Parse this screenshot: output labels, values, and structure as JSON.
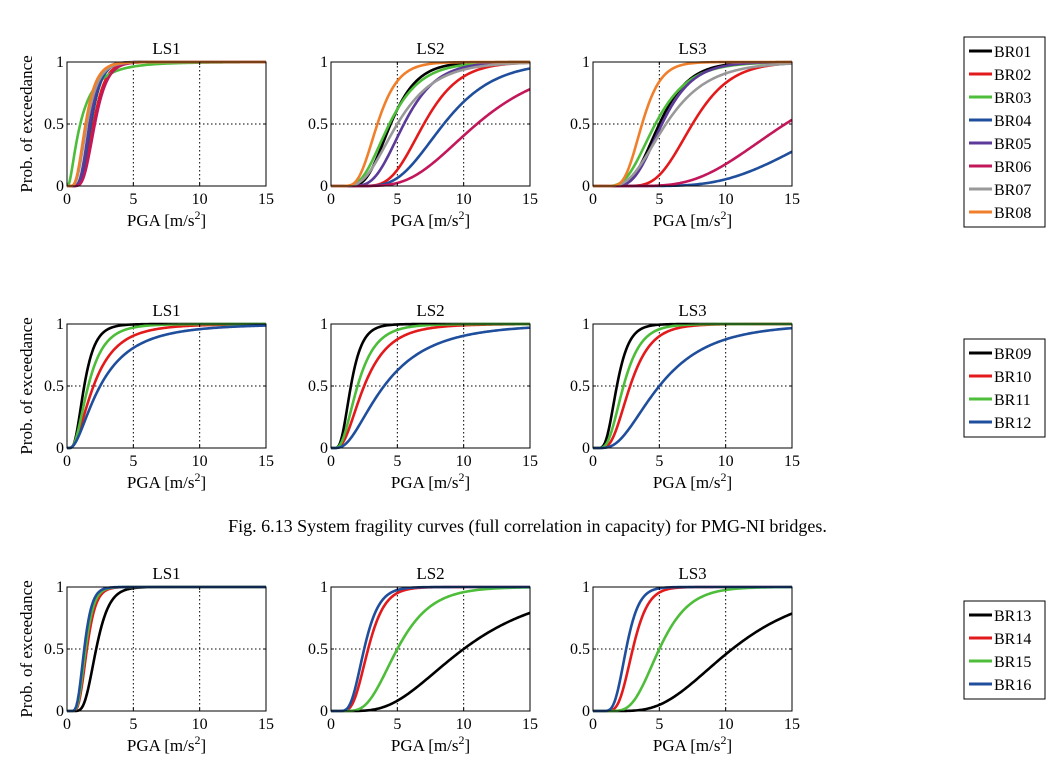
{
  "caption": "Fig. 6.13 System fragility curves (full correlation in capacity) for PMG-NI bridges.",
  "chart_data": [
    {
      "type": "line",
      "title": "System fragility curves, BR01-BR08",
      "ylabel": "Prob. of exceedance",
      "xlabel_main": "PGA [m/s",
      "xlabel_sup": "2",
      "xlabel_end": "]",
      "xlim": [
        0,
        15
      ],
      "ylim": [
        0,
        1
      ],
      "xticks": [
        "0",
        "5",
        "10",
        "15"
      ],
      "yticks": [
        "0",
        "0.5",
        "1"
      ],
      "panels": [
        {
          "title": "LS1",
          "series": [
            {
              "name": "BR01",
              "color": "#000000",
              "median": 1.8,
              "beta": 0.35
            },
            {
              "name": "BR02",
              "color": "#e31a1c",
              "median": 2.0,
              "beta": 0.35
            },
            {
              "name": "BR03",
              "color": "#4dbd3a",
              "median": 1.0,
              "beta": 0.9
            },
            {
              "name": "BR04",
              "color": "#1f4e9c",
              "median": 1.8,
              "beta": 0.35
            },
            {
              "name": "BR05",
              "color": "#5b3a99",
              "median": 1.7,
              "beta": 0.35
            },
            {
              "name": "BR06",
              "color": "#c2185b",
              "median": 2.1,
              "beta": 0.35
            },
            {
              "name": "BR07",
              "color": "#999999",
              "median": 1.5,
              "beta": 0.45
            },
            {
              "name": "BR08",
              "color": "#f07f2b",
              "median": 1.4,
              "beta": 0.45
            }
          ]
        },
        {
          "title": "LS2",
          "series": [
            {
              "name": "BR01",
              "color": "#000000",
              "median": 4.5,
              "beta": 0.35
            },
            {
              "name": "BR02",
              "color": "#e31a1c",
              "median": 7.0,
              "beta": 0.3
            },
            {
              "name": "BR03",
              "color": "#4dbd3a",
              "median": 4.4,
              "beta": 0.42
            },
            {
              "name": "BR04",
              "color": "#1f4e9c",
              "median": 8.5,
              "beta": 0.35
            },
            {
              "name": "BR05",
              "color": "#5b3a99",
              "median": 5.5,
              "beta": 0.35
            },
            {
              "name": "BR06",
              "color": "#c2185b",
              "median": 11.0,
              "beta": 0.4
            },
            {
              "name": "BR07",
              "color": "#999999",
              "median": 5.0,
              "beta": 0.45
            },
            {
              "name": "BR08",
              "color": "#f07f2b",
              "median": 3.5,
              "beta": 0.35
            }
          ]
        },
        {
          "title": "LS3",
          "series": [
            {
              "name": "BR01",
              "color": "#000000",
              "median": 5.0,
              "beta": 0.35
            },
            {
              "name": "BR02",
              "color": "#e31a1c",
              "median": 7.5,
              "beta": 0.3
            },
            {
              "name": "BR03",
              "color": "#4dbd3a",
              "median": 4.7,
              "beta": 0.42
            },
            {
              "name": "BR04",
              "color": "#1f4e9c",
              "median": 19.0,
              "beta": 0.4
            },
            {
              "name": "BR05",
              "color": "#5b3a99",
              "median": 5.2,
              "beta": 0.35
            },
            {
              "name": "BR06",
              "color": "#c2185b",
              "median": 14.5,
              "beta": 0.4
            },
            {
              "name": "BR07",
              "color": "#999999",
              "median": 5.5,
              "beta": 0.45
            },
            {
              "name": "BR08",
              "color": "#f07f2b",
              "median": 3.7,
              "beta": 0.3
            }
          ]
        }
      ]
    },
    {
      "type": "line",
      "title": "System fragility curves, BR09-BR12",
      "ylabel": "Prob. of exceedance",
      "xlabel_main": "PGA [m/s",
      "xlabel_sup": "2",
      "xlabel_end": "]",
      "xlim": [
        0,
        15
      ],
      "ylim": [
        0,
        1
      ],
      "xticks": [
        "0",
        "5",
        "10",
        "15"
      ],
      "yticks": [
        "0",
        "0.5",
        "1"
      ],
      "panels": [
        {
          "title": "LS1",
          "series": [
            {
              "name": "BR09",
              "color": "#000000",
              "median": 1.3,
              "beta": 0.5
            },
            {
              "name": "BR10",
              "color": "#e31a1c",
              "median": 2.0,
              "beta": 0.7
            },
            {
              "name": "BR11",
              "color": "#4dbd3a",
              "median": 1.6,
              "beta": 0.6
            },
            {
              "name": "BR12",
              "color": "#1f4e9c",
              "median": 2.5,
              "beta": 0.8
            }
          ]
        },
        {
          "title": "LS2",
          "series": [
            {
              "name": "BR09",
              "color": "#000000",
              "median": 1.5,
              "beta": 0.45
            },
            {
              "name": "BR10",
              "color": "#e31a1c",
              "median": 2.5,
              "beta": 0.6
            },
            {
              "name": "BR11",
              "color": "#4dbd3a",
              "median": 2.0,
              "beta": 0.55
            },
            {
              "name": "BR12",
              "color": "#1f4e9c",
              "median": 4.0,
              "beta": 0.7
            }
          ]
        },
        {
          "title": "LS3",
          "series": [
            {
              "name": "BR09",
              "color": "#000000",
              "median": 1.8,
              "beta": 0.4
            },
            {
              "name": "BR10",
              "color": "#e31a1c",
              "median": 2.8,
              "beta": 0.45
            },
            {
              "name": "BR11",
              "color": "#4dbd3a",
              "median": 2.3,
              "beta": 0.45
            },
            {
              "name": "BR12",
              "color": "#1f4e9c",
              "median": 5.0,
              "beta": 0.6
            }
          ]
        }
      ]
    },
    {
      "type": "line",
      "title": "System fragility curves, BR13-BR16",
      "ylabel": "Prob. of exceedance",
      "xlabel_main": "PGA [m/s",
      "xlabel_sup": "2",
      "xlabel_end": "]",
      "xlim": [
        0,
        15
      ],
      "ylim": [
        0,
        1
      ],
      "xticks": [
        "0",
        "5",
        "10",
        "15"
      ],
      "yticks": [
        "0",
        "0.5",
        "1"
      ],
      "panels": [
        {
          "title": "LS1",
          "series": [
            {
              "name": "BR13",
              "color": "#000000",
              "median": 2.2,
              "beta": 0.35
            },
            {
              "name": "BR14",
              "color": "#e31a1c",
              "median": 1.5,
              "beta": 0.35
            },
            {
              "name": "BR15",
              "color": "#4dbd3a",
              "median": 1.4,
              "beta": 0.35
            },
            {
              "name": "BR16",
              "color": "#1f4e9c",
              "median": 1.3,
              "beta": 0.35
            }
          ]
        },
        {
          "title": "LS2",
          "series": [
            {
              "name": "BR13",
              "color": "#000000",
              "median": 10.0,
              "beta": 0.5
            },
            {
              "name": "BR14",
              "color": "#e31a1c",
              "median": 2.8,
              "beta": 0.35
            },
            {
              "name": "BR15",
              "color": "#4dbd3a",
              "median": 5.0,
              "beta": 0.4
            },
            {
              "name": "BR16",
              "color": "#1f4e9c",
              "median": 2.5,
              "beta": 0.35
            }
          ]
        },
        {
          "title": "LS3",
          "series": [
            {
              "name": "BR13",
              "color": "#000000",
              "median": 10.5,
              "beta": 0.45
            },
            {
              "name": "BR14",
              "color": "#e31a1c",
              "median": 3.0,
              "beta": 0.3
            },
            {
              "name": "BR15",
              "color": "#4dbd3a",
              "median": 5.0,
              "beta": 0.35
            },
            {
              "name": "BR16",
              "color": "#1f4e9c",
              "median": 2.5,
              "beta": 0.3
            }
          ]
        }
      ]
    }
  ]
}
